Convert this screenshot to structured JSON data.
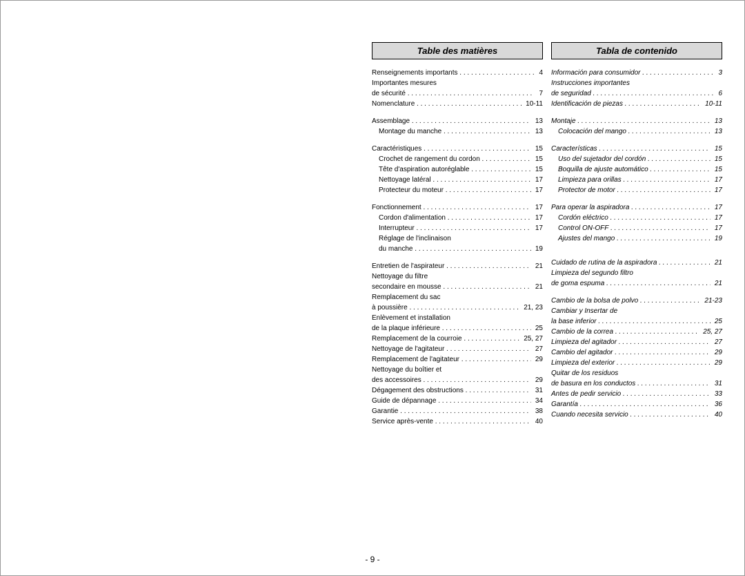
{
  "page_number_label": "- 9 -",
  "french": {
    "header": "Table des matières",
    "entries": [
      {
        "label": "Renseignements importants",
        "page": "4",
        "indent": 0
      },
      {
        "label": "Importantes mesures",
        "page": "",
        "indent": 0,
        "nodots": true
      },
      {
        "label": "de sécurité",
        "page": "7",
        "indent": 0
      },
      {
        "label": "Nomenclature",
        "page": "10-11",
        "indent": 0
      },
      {
        "gap": true
      },
      {
        "label": "Assemblage",
        "page": "13",
        "indent": 0
      },
      {
        "label": "Montage du manche",
        "page": "13",
        "indent": 1
      },
      {
        "gap": true
      },
      {
        "label": "Caractéristiques",
        "page": "15",
        "indent": 0
      },
      {
        "label": "Crochet de rangement du cordon",
        "page": "15",
        "indent": 1
      },
      {
        "label": "Tête d'aspiration autoréglable",
        "page": "15",
        "indent": 1
      },
      {
        "label": "Nettoyage latéral",
        "page": "17",
        "indent": 1
      },
      {
        "label": "Protecteur du moteur",
        "page": "17",
        "indent": 1
      },
      {
        "gap": true
      },
      {
        "label": "Fonctionnement",
        "page": "17",
        "indent": 0
      },
      {
        "label": "Cordon d'alimentation",
        "page": "17",
        "indent": 1
      },
      {
        "label": "Interrupteur",
        "page": "17",
        "indent": 1
      },
      {
        "label": "Réglage de l'inclinaison",
        "page": "",
        "indent": 1,
        "nodots": true
      },
      {
        "label": "du manche",
        "page": "19",
        "indent": 1
      },
      {
        "gap": true
      },
      {
        "label": "Entretien de l'aspirateur",
        "page": "21",
        "indent": 0
      },
      {
        "label": "Nettoyage du filtre",
        "page": "",
        "indent": 0,
        "nodots": true
      },
      {
        "label": "secondaire en mousse",
        "page": "21",
        "indent": 0
      },
      {
        "label": "Remplacement du sac",
        "page": "",
        "indent": 0,
        "nodots": true
      },
      {
        "label": "à poussière",
        "page": "21, 23",
        "indent": 0
      },
      {
        "label": "Enlèvement et installation",
        "page": "",
        "indent": 0,
        "nodots": true
      },
      {
        "label": "de la plaque inférieure",
        "page": "25",
        "indent": 0
      },
      {
        "label": "Remplacement de la courroie",
        "page": "25, 27",
        "indent": 0
      },
      {
        "label": "Nettoyage de l'agitateur",
        "page": "27",
        "indent": 0
      },
      {
        "label": "Remplacement de l'agitateur",
        "page": "29",
        "indent": 0
      },
      {
        "label": "Nettoyage du boîtier et",
        "page": "",
        "indent": 0,
        "nodots": true
      },
      {
        "label": "des accessoires",
        "page": "29",
        "indent": 0
      },
      {
        "label": "Dégagement des obstructions",
        "page": "31",
        "indent": 0
      },
      {
        "label": "Guide de dépannage",
        "page": "34",
        "indent": 0
      },
      {
        "label": "Garantie",
        "page": "38",
        "indent": 0
      },
      {
        "label": "Service après-vente",
        "page": "40",
        "indent": 0
      }
    ]
  },
  "spanish": {
    "header": "Tabla de contenido",
    "italic": true,
    "entries": [
      {
        "label": "Información para consumidor",
        "page": "3",
        "indent": 0
      },
      {
        "label": "Instrucciones importantes",
        "page": "",
        "indent": 0,
        "nodots": true
      },
      {
        "label": "de seguridad",
        "page": "6",
        "indent": 0
      },
      {
        "label": "Identificación de piezas",
        "page": "10-11",
        "indent": 0
      },
      {
        "gap": true
      },
      {
        "label": "Montaje",
        "page": "13",
        "indent": 0
      },
      {
        "label": "Colocación del mango",
        "page": "13",
        "indent": 1
      },
      {
        "gap": true
      },
      {
        "label": "Características",
        "page": "15",
        "indent": 0
      },
      {
        "label": "Uso del sujetador del cordón",
        "page": "15",
        "indent": 1
      },
      {
        "label": "Boquilla de ajuste automático",
        "page": "15",
        "indent": 1
      },
      {
        "label": "Limpieza para orillas",
        "page": "17",
        "indent": 1
      },
      {
        "label": "Protector de motor",
        "page": "17",
        "indent": 1
      },
      {
        "gap": true
      },
      {
        "label": "Para operar la aspiradora",
        "page": "17",
        "indent": 0
      },
      {
        "label": "Cordón eléctrico",
        "page": "17",
        "indent": 1
      },
      {
        "label": "Control ON-OFF",
        "page": "17",
        "indent": 1
      },
      {
        "label": "Ajustes del mango",
        "page": "19",
        "indent": 1
      },
      {
        "gap": true
      },
      {
        "gap": true
      },
      {
        "label": "Cuidado de rutina de la aspiradora",
        "page": "21",
        "indent": 0
      },
      {
        "label": "Limpieza del segundo filtro",
        "page": "",
        "indent": 0,
        "nodots": true
      },
      {
        "label": "de goma espuma",
        "page": "21",
        "indent": 0
      },
      {
        "gap": true
      },
      {
        "label": "Cambio de la bolsa de polvo",
        "page": "21-23",
        "indent": 0
      },
      {
        "label": "Cambiar y Insertar de",
        "page": "",
        "indent": 0,
        "nodots": true
      },
      {
        "label": "la base inferior",
        "page": "25",
        "indent": 0
      },
      {
        "label": "Cambio de la correa",
        "page": "25, 27",
        "indent": 0
      },
      {
        "label": "Limpieza del agitador",
        "page": "27",
        "indent": 0
      },
      {
        "label": "Cambio del agitador",
        "page": "29",
        "indent": 0
      },
      {
        "label": "Limpieza del exterior",
        "page": "29",
        "indent": 0
      },
      {
        "label": "Quitar de los residuos",
        "page": "",
        "indent": 0,
        "nodots": true
      },
      {
        "label": "de basura en los conductos",
        "page": "31",
        "indent": 0
      },
      {
        "label": "Antes de pedir servicio",
        "page": "33",
        "indent": 0
      },
      {
        "label": "Garantía",
        "page": "36",
        "indent": 0
      },
      {
        "label": "Cuando necesita servicio",
        "page": "40",
        "indent": 0
      }
    ]
  }
}
